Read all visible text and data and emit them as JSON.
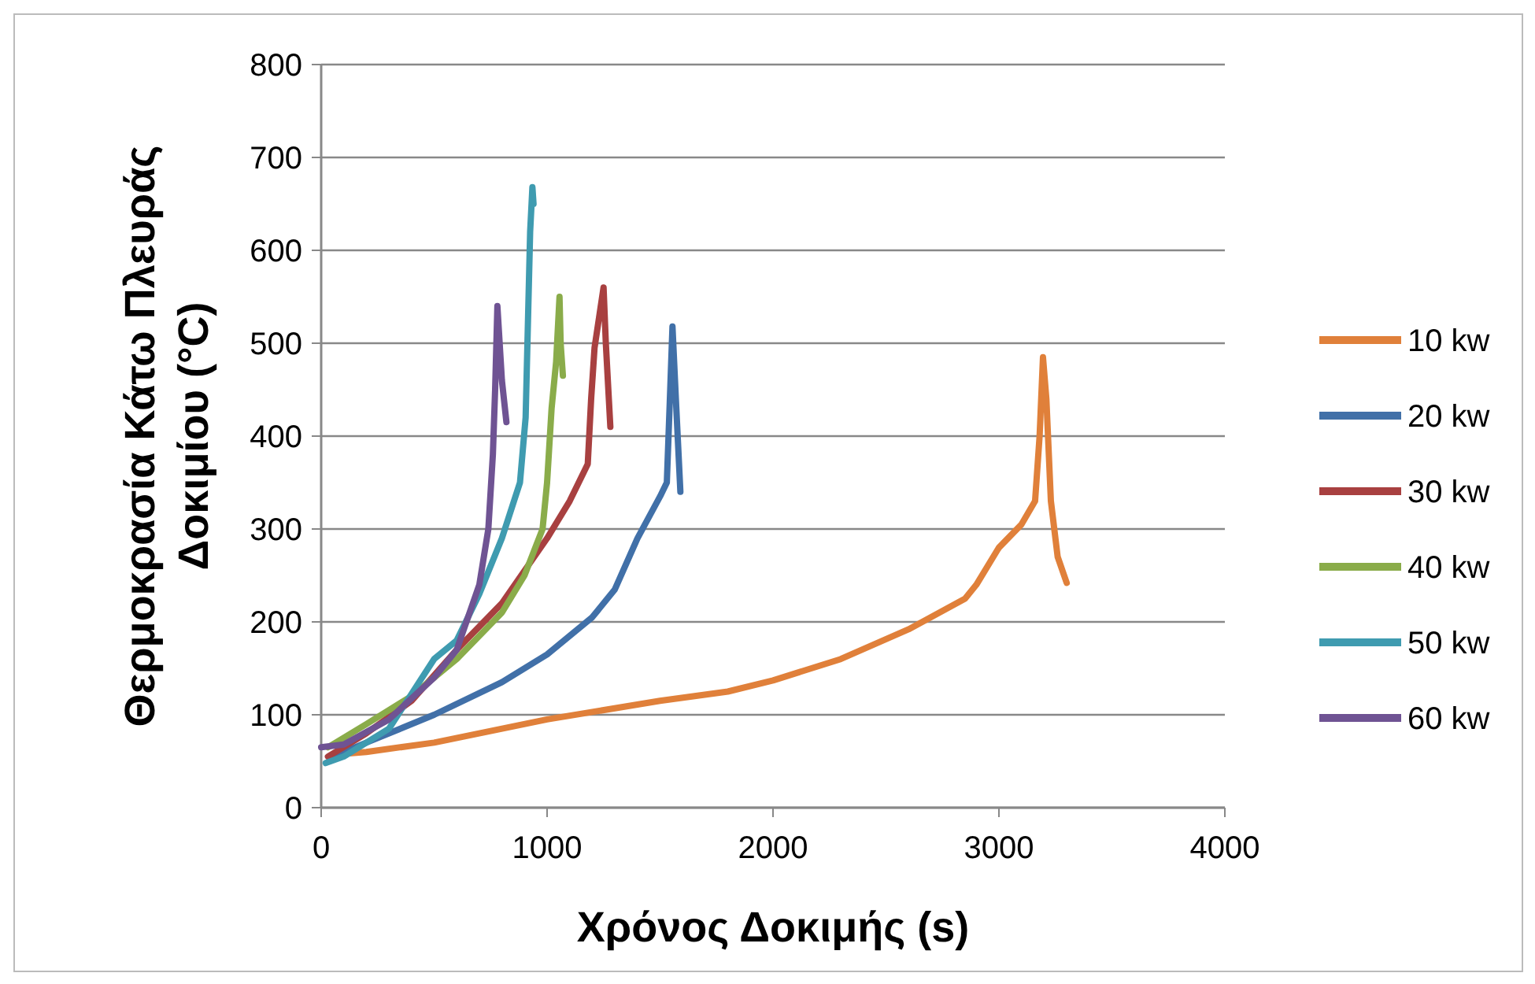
{
  "chart_data": {
    "type": "line",
    "xlabel": "Χρόνος Δοκιμής (s)",
    "ylabel": "Θερμοκρασία Κάτω Πλευράς Δοκιμίου (°C)",
    "xlim": [
      0,
      4000
    ],
    "xticks": [
      0,
      1000,
      2000,
      3000,
      4000
    ],
    "ylim": [
      0,
      800
    ],
    "yticks": [
      0,
      100,
      200,
      300,
      400,
      500,
      600,
      700,
      800
    ],
    "grid": "y",
    "legend": "right",
    "marker": "none",
    "line_style": "solid",
    "series": [
      {
        "name": "10 kw",
        "color": "#e0803a",
        "x": [
          50,
          200,
          500,
          1000,
          1500,
          1800,
          2000,
          2300,
          2600,
          2850,
          2900,
          3000,
          3100,
          3160,
          3180,
          3195,
          3210,
          3230,
          3260,
          3300
        ],
        "values": [
          57,
          60,
          70,
          95,
          115,
          125,
          137,
          160,
          192,
          225,
          240,
          280,
          305,
          330,
          400,
          485,
          440,
          330,
          270,
          242
        ]
      },
      {
        "name": "20 kw",
        "color": "#4170a8",
        "x": [
          50,
          200,
          500,
          800,
          1000,
          1200,
          1300,
          1400,
          1500,
          1530,
          1545,
          1555,
          1570,
          1590
        ],
        "values": [
          55,
          70,
          100,
          135,
          165,
          205,
          235,
          290,
          335,
          350,
          450,
          518,
          440,
          340
        ]
      },
      {
        "name": "30 kw",
        "color": "#a84040",
        "x": [
          30,
          200,
          400,
          600,
          800,
          1000,
          1100,
          1180,
          1195,
          1210,
          1250,
          1260,
          1280
        ],
        "values": [
          55,
          80,
          115,
          170,
          220,
          290,
          330,
          370,
          440,
          495,
          560,
          500,
          410
        ]
      },
      {
        "name": "40 kw",
        "color": "#8aac4a",
        "x": [
          30,
          200,
          400,
          600,
          800,
          900,
          980,
          1000,
          1020,
          1040,
          1055,
          1060,
          1070
        ],
        "values": [
          65,
          90,
          120,
          160,
          210,
          250,
          300,
          350,
          430,
          480,
          550,
          500,
          465
        ]
      },
      {
        "name": "50 kw",
        "color": "#3f9bb0",
        "x": [
          20,
          100,
          300,
          500,
          600,
          700,
          800,
          880,
          905,
          915,
          925,
          935,
          940
        ],
        "values": [
          48,
          55,
          85,
          160,
          180,
          230,
          290,
          350,
          420,
          520,
          620,
          668,
          650
        ]
      },
      {
        "name": "60 kw",
        "color": "#6f5393",
        "x": [
          0,
          100,
          300,
          500,
          600,
          700,
          740,
          760,
          770,
          780,
          800,
          820
        ],
        "values": [
          65,
          68,
          95,
          140,
          170,
          240,
          300,
          380,
          450,
          540,
          460,
          415
        ]
      }
    ]
  }
}
